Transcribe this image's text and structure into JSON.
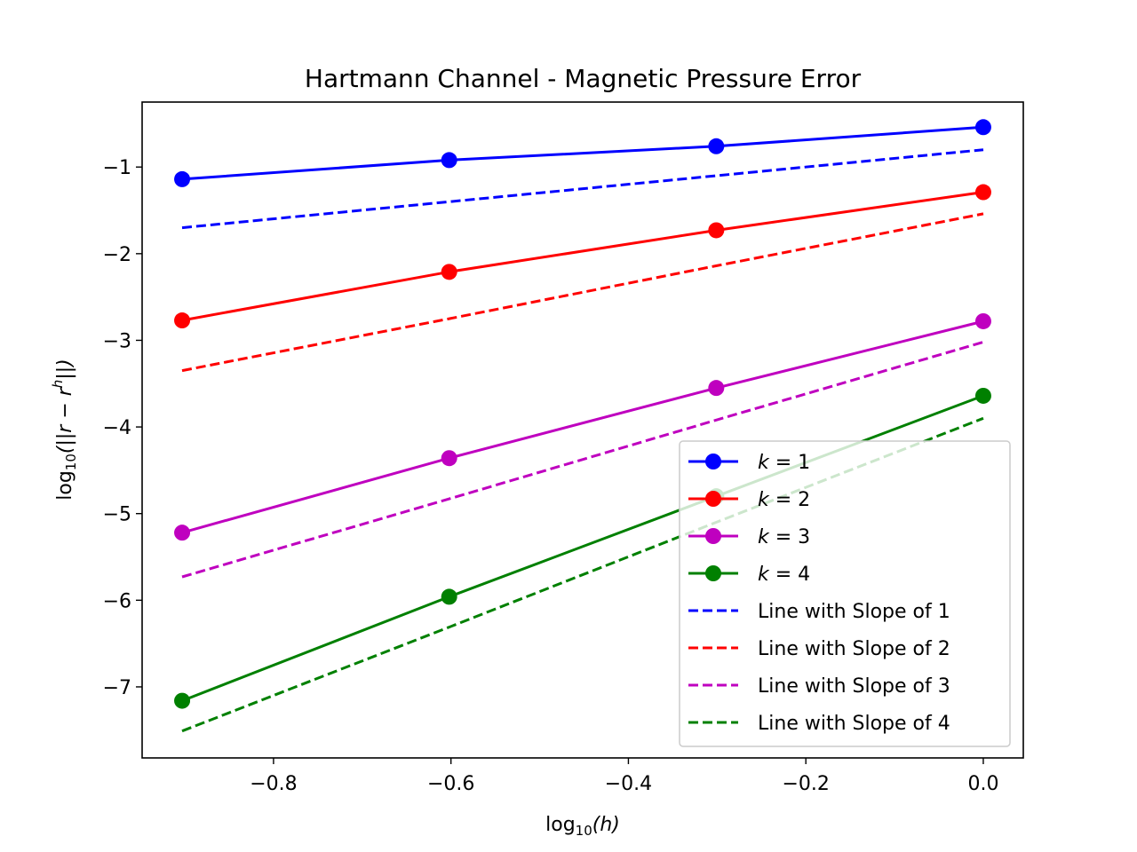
{
  "chart_data": {
    "type": "line",
    "title": "Hartmann Channel - Magnetic Pressure Error",
    "xlabel": {
      "prefix": "log",
      "sub": "10",
      "body": "(h)"
    },
    "ylabel": {
      "prefix": "log",
      "sub": "10",
      "body": "(||r − r",
      "sup": "h",
      "suffix": "||)"
    },
    "xlim": [
      -0.9481,
      0.0451
    ],
    "ylim": [
      -7.82,
      -0.25
    ],
    "xticks": [
      -0.8,
      -0.6,
      -0.4,
      -0.2,
      0.0
    ],
    "xtick_labels": [
      "−0.8",
      "−0.6",
      "−0.4",
      "−0.2",
      "0.0"
    ],
    "yticks": [
      -7,
      -6,
      -5,
      -4,
      -3,
      -2,
      -1
    ],
    "ytick_labels": [
      "−7",
      "−6",
      "−5",
      "−4",
      "−3",
      "−2",
      "−1"
    ],
    "x": [
      -0.903,
      -0.602,
      -0.301,
      0.0
    ],
    "series": [
      {
        "name": "k = 1",
        "kind": "k",
        "k": "1",
        "style": "solid-marker",
        "color": "#0000ff",
        "values": [
          -1.14,
          -0.92,
          -0.76,
          -0.54
        ]
      },
      {
        "name": "k = 2",
        "kind": "k",
        "k": "2",
        "style": "solid-marker",
        "color": "#ff0000",
        "values": [
          -2.77,
          -2.21,
          -1.73,
          -1.29
        ]
      },
      {
        "name": "k = 3",
        "kind": "k",
        "k": "3",
        "style": "solid-marker",
        "color": "#bf00bf",
        "values": [
          -5.22,
          -4.36,
          -3.55,
          -2.78
        ]
      },
      {
        "name": "k = 4",
        "kind": "k",
        "k": "4",
        "style": "solid-marker",
        "color": "#008000",
        "values": [
          -7.16,
          -5.96,
          -4.8,
          -3.64
        ]
      },
      {
        "name": "Line with Slope of 1",
        "kind": "text",
        "style": "dashed",
        "color": "#0000ff",
        "values": [
          -1.7,
          -1.4,
          -1.1,
          -0.8
        ]
      },
      {
        "name": "Line with Slope of 2",
        "kind": "text",
        "style": "dashed",
        "color": "#ff0000",
        "values": [
          -3.35,
          -2.75,
          -2.14,
          -1.54
        ]
      },
      {
        "name": "Line with Slope of 3",
        "kind": "text",
        "style": "dashed",
        "color": "#bf00bf",
        "values": [
          -5.73,
          -4.83,
          -3.92,
          -3.02
        ]
      },
      {
        "name": "Line with Slope of 4",
        "kind": "text",
        "style": "dashed",
        "color": "#008000",
        "values": [
          -7.51,
          -6.31,
          -5.1,
          -3.9
        ]
      }
    ],
    "legend_position": "lower-right",
    "grid": false
  }
}
